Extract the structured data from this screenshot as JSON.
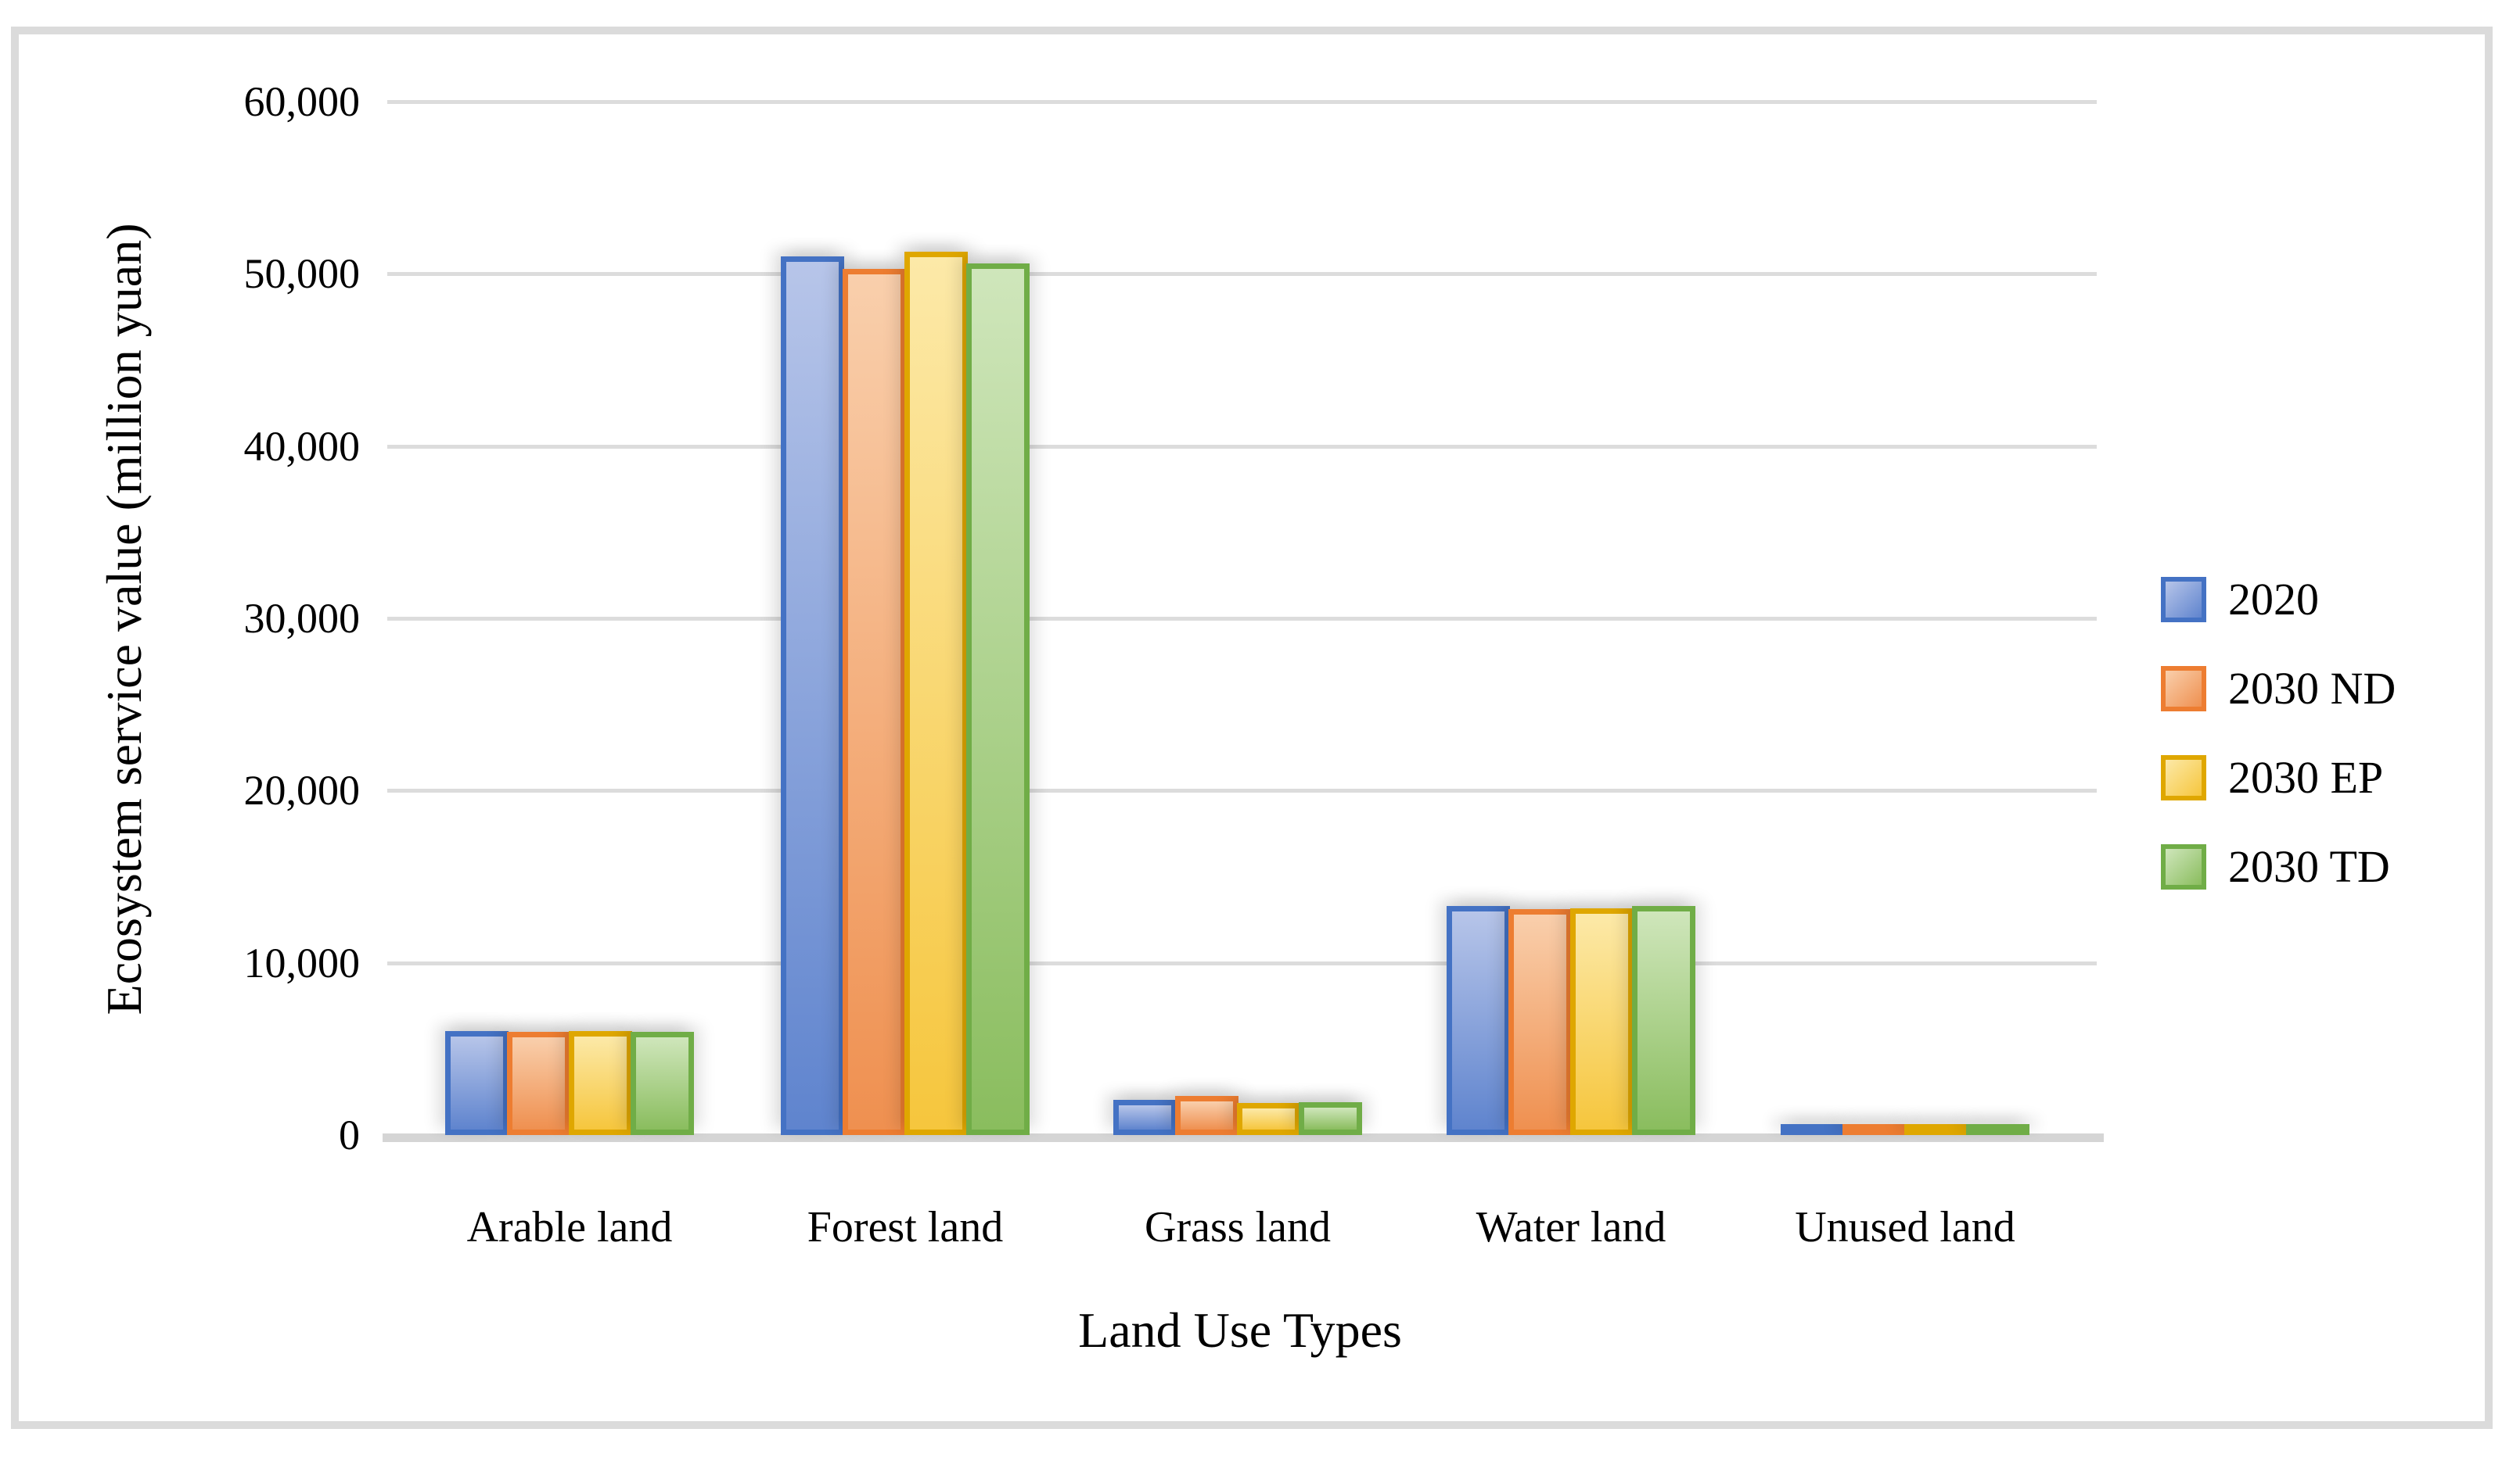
{
  "figure": {
    "background_color": "#ffffff",
    "frame_border_color": "#dbdbdb",
    "gridline_color": "#dcdcdc",
    "axis_line_color": "#d5d5d5",
    "text_color": "#000000"
  },
  "chart_data": {
    "type": "bar",
    "title": "",
    "xlabel": "Land Use Types",
    "ylabel": "Ecosystem service value (million yuan)",
    "categories": [
      "Arable land",
      "Forest land",
      "Grass land",
      "Water land",
      "Unused land"
    ],
    "series": [
      {
        "name": "2020",
        "color": "#4472c4",
        "fill_light": "#b7c5e9",
        "fill_dark": "#5f84ce",
        "values": [
          6050,
          51000,
          2050,
          13300,
          300
        ]
      },
      {
        "name": "2030 ND",
        "color": "#ed7d31",
        "fill_light": "#f9cfac",
        "fill_dark": "#ef9050",
        "values": [
          6000,
          50300,
          2250,
          13100,
          300
        ]
      },
      {
        "name": "2030 EP",
        "color": "#dfa700",
        "fill_light": "#fce9a8",
        "fill_dark": "#f6c63d",
        "values": [
          6050,
          51300,
          1850,
          13150,
          300
        ]
      },
      {
        "name": "2030 TD",
        "color": "#70ad47",
        "fill_light": "#cfe6bb",
        "fill_dark": "#8abd5e",
        "values": [
          6000,
          50600,
          1900,
          13300,
          300
        ]
      }
    ],
    "ylim": [
      0,
      60000
    ],
    "ytick_step": 10000,
    "yticks": [
      "60,000",
      "50,000",
      "40,000",
      "30,000",
      "20,000",
      "10,000",
      "0"
    ],
    "grid": true,
    "legend_position": "right",
    "legend_entries": [
      "2020",
      "2030 ND",
      "2030 EP",
      "2030 TD"
    ]
  }
}
